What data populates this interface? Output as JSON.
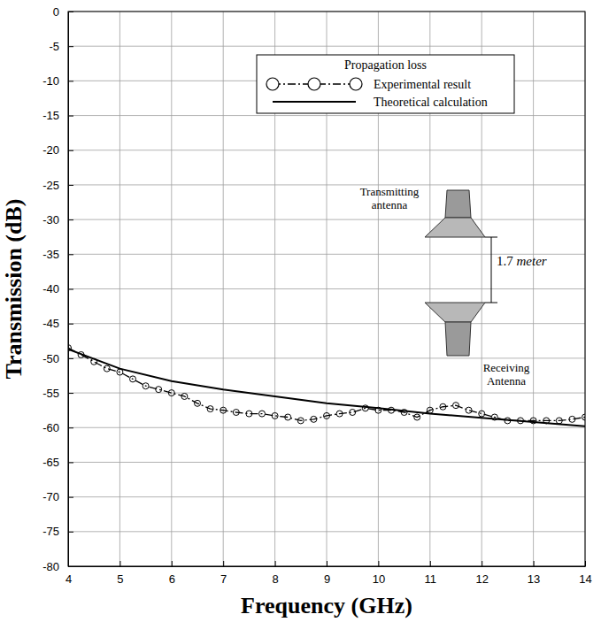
{
  "chart_data": {
    "type": "line",
    "x_label": "Frequency (GHz)",
    "y_label": "Transmission (dB)",
    "legend_title": "Propagation loss",
    "annotations": [
      "Transmitting antenna",
      "1.7 meter",
      "Receiving Antenna"
    ],
    "xlim": [
      4,
      14
    ],
    "xticks": [
      4,
      5,
      6,
      7,
      8,
      9,
      10,
      11,
      12,
      13,
      14
    ],
    "ylim": [
      -80,
      0
    ],
    "yticks": [
      -80,
      -75,
      -70,
      -65,
      -60,
      -55,
      -50,
      -45,
      -40,
      -35,
      -30,
      -25,
      -20,
      -15,
      -10,
      -5,
      0
    ],
    "grid": true,
    "legend": "top",
    "series": [
      {
        "name": "Experimental result",
        "color": "#000000",
        "marker": "circle",
        "line_style": "dashdot",
        "x": [
          4.0,
          4.25,
          4.5,
          4.75,
          5.0,
          5.25,
          5.5,
          5.75,
          6.0,
          6.25,
          6.5,
          6.75,
          7.0,
          7.25,
          7.5,
          7.75,
          8.0,
          8.25,
          8.5,
          8.75,
          9.0,
          9.25,
          9.5,
          9.75,
          10.0,
          10.25,
          10.5,
          10.75,
          11.0,
          11.25,
          11.5,
          11.75,
          12.0,
          12.25,
          12.5,
          12.75,
          13.0,
          13.25,
          13.5,
          13.75,
          14.0
        ],
        "values": [
          -48.5,
          -49.5,
          -50.5,
          -51.5,
          -52,
          -53,
          -54,
          -54.5,
          -55,
          -55.5,
          -56.5,
          -57.3,
          -57.5,
          -57.8,
          -58,
          -58,
          -58.3,
          -58.5,
          -59,
          -58.8,
          -58.3,
          -58,
          -57.8,
          -57.2,
          -57.5,
          -57.5,
          -57.8,
          -58.5,
          -57.5,
          -57,
          -56.8,
          -57.5,
          -58,
          -58.5,
          -59,
          -59,
          -59,
          -59,
          -59,
          -58.8,
          -58.5
        ]
      },
      {
        "name": "Theoretical calculation",
        "color": "#000000",
        "marker": "none",
        "line_style": "solid",
        "x": [
          4,
          5,
          6,
          7,
          8,
          9,
          10,
          11,
          12,
          13,
          14
        ],
        "values": [
          -48.7,
          -51.5,
          -53.3,
          -54.5,
          -55.5,
          -56.5,
          -57.2,
          -58,
          -58.6,
          -59.2,
          -59.8
        ]
      }
    ]
  }
}
